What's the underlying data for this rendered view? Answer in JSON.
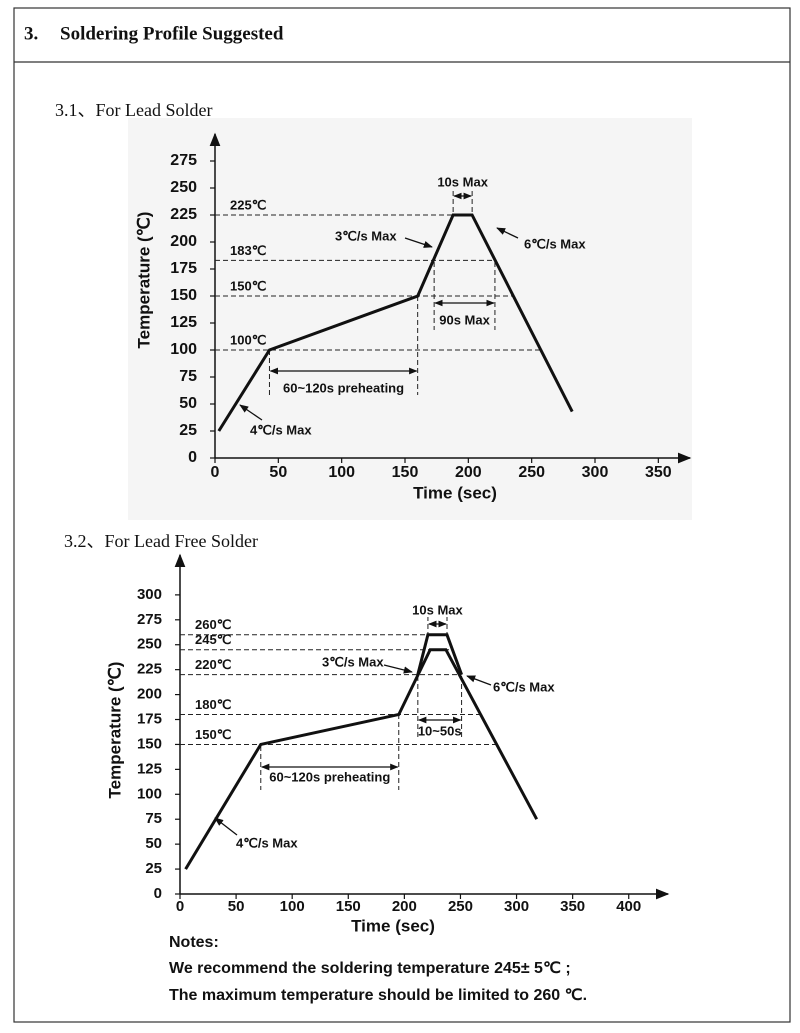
{
  "section_number": "3.",
  "section_title": "Soldering Profile Suggested",
  "chart_data": [
    {
      "type": "line",
      "caption": "3.1、For Lead Solder",
      "xlabel": "Time (sec)",
      "ylabel": "Temperature (℃)",
      "xlim": [
        0,
        375
      ],
      "ylim": [
        0,
        300
      ],
      "xticks": [
        0,
        50,
        100,
        150,
        200,
        250,
        300,
        350
      ],
      "yticks": [
        0,
        25,
        50,
        75,
        100,
        125,
        150,
        175,
        200,
        225,
        250,
        275
      ],
      "series": [
        {
          "color": "#111111",
          "x": [
            3,
            43,
            160,
            188,
            203,
            282
          ],
          "values": [
            25,
            100,
            150,
            225,
            225,
            43
          ]
        }
      ],
      "hlines": [
        {
          "value": 225,
          "label": "225℃"
        },
        {
          "value": 183,
          "label": "183℃"
        },
        {
          "value": 150,
          "label": "150℃"
        },
        {
          "value": 100,
          "label": "100℃"
        }
      ],
      "spans": [
        {
          "from": 43,
          "to": 160,
          "label": "60~120s preheating"
        },
        {
          "from": 173,
          "to": 221,
          "label": "90s Max"
        },
        {
          "from": 188,
          "to": 203,
          "label": "10s Max"
        }
      ],
      "rate_labels": [
        "4℃/s Max",
        "3℃/s Max",
        "6℃/s Max"
      ]
    },
    {
      "type": "line",
      "caption": "3.2、For Lead Free Solder",
      "xlabel": "Time (sec)",
      "ylabel": "Temperature (℃)",
      "xlim": [
        0,
        435
      ],
      "ylim": [
        0,
        340
      ],
      "xticks": [
        0,
        50,
        100,
        150,
        200,
        250,
        300,
        350,
        400
      ],
      "yticks": [
        0,
        25,
        50,
        75,
        100,
        125,
        150,
        175,
        200,
        225,
        250,
        275,
        300
      ],
      "series": [
        {
          "color": "#111111",
          "x": [
            5,
            72,
            195,
            223,
            237,
            318
          ],
          "values": [
            25,
            150,
            180,
            245,
            245,
            75
          ]
        },
        {
          "color": "#111111",
          "x": [
            212,
            221,
            238,
            251
          ],
          "values": [
            220,
            260,
            260,
            220
          ]
        }
      ],
      "hlines": [
        {
          "value": 260,
          "label": "260℃"
        },
        {
          "value": 245,
          "label": "245℃"
        },
        {
          "value": 220,
          "label": "220℃"
        },
        {
          "value": 180,
          "label": "180℃"
        },
        {
          "value": 150,
          "label": "150℃"
        }
      ],
      "spans": [
        {
          "from": 72,
          "to": 195,
          "label": "60~120s preheating"
        },
        {
          "from": 212,
          "to": 251,
          "label": "10~50s"
        },
        {
          "from": 221,
          "to": 238,
          "label": "10s Max"
        }
      ],
      "rate_labels": [
        "3℃/s Max",
        "6℃/s Max",
        "4℃/s Max"
      ]
    }
  ],
  "notes": {
    "title": "Notes:",
    "lines": [
      "We recommend the soldering temperature 245± 5℃ ;",
      "The maximum temperature should be limited to 260 ℃."
    ]
  }
}
